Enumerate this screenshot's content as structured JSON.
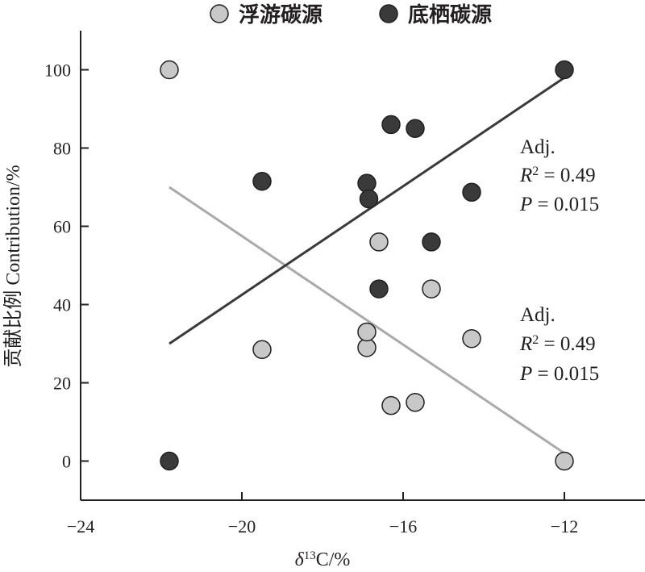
{
  "chart_data": {
    "type": "scatter",
    "xlabel_symbol": "δ",
    "xlabel_sup": "13",
    "xlabel_rest": "C/%",
    "ylabel_cn": "贡献比例",
    "ylabel_en": " Contribution/%",
    "xlim": [
      -24,
      -10
    ],
    "ylim": [
      -10,
      110
    ],
    "xticks": [
      -24,
      -20,
      -16,
      -12
    ],
    "xtick_labels": [
      "−24",
      "−20",
      "−16",
      "−12"
    ],
    "yticks": [
      0,
      20,
      40,
      60,
      80,
      100
    ],
    "ytick_labels": [
      "0",
      "20",
      "40",
      "60",
      "80",
      "100"
    ],
    "legend_position": "top-center",
    "series": [
      {
        "name": "浮游碳源",
        "color": "#c8c8c8",
        "x": [
          -21.8,
          -19.5,
          -16.9,
          -16.9,
          -16.6,
          -16.3,
          -15.7,
          -15.3,
          -14.3,
          -12.0
        ],
        "y": [
          100,
          28.5,
          29,
          33,
          56,
          14.2,
          15,
          44,
          31.3,
          0
        ],
        "fit": {
          "x": [
            -21.8,
            -12.0
          ],
          "y": [
            70,
            2
          ],
          "color": "#aaaaaa"
        }
      },
      {
        "name": "底栖碳源",
        "color": "#3a3a3a",
        "x": [
          -21.8,
          -19.5,
          -16.9,
          -16.85,
          -16.6,
          -16.3,
          -15.7,
          -15.3,
          -14.3,
          -12.0
        ],
        "y": [
          0,
          71.5,
          71,
          67,
          44,
          86,
          85,
          56,
          68.7,
          100
        ],
        "fit": {
          "x": [
            -21.8,
            -12.0
          ],
          "y": [
            30,
            98
          ],
          "color": "#3a3a3a"
        }
      }
    ],
    "annotations": [
      {
        "adj": "Adj.",
        "r_sym": "R",
        "r_sup": "2",
        "r_val": " = 0.49",
        "p_sym": "P",
        "p_val": " = 0.015"
      },
      {
        "adj": "Adj.",
        "r_sym": "R",
        "r_sup": "2",
        "r_val": " = 0.49",
        "p_sym": "P",
        "p_val": " = 0.015"
      }
    ]
  }
}
